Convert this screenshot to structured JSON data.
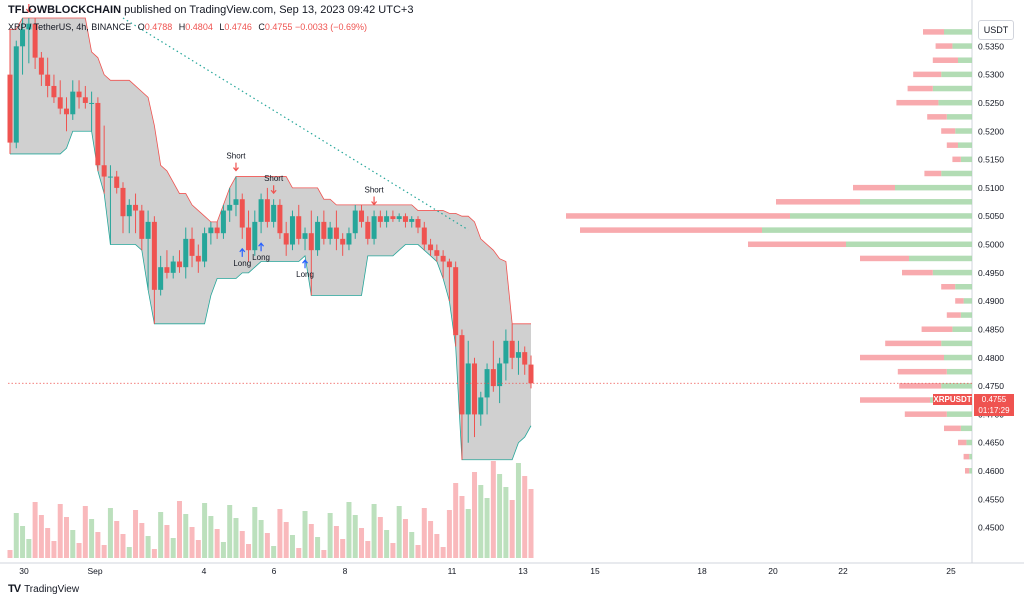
{
  "header": {
    "publisher_name": "TFLOWBLOCKCHAIN",
    "publisher_rest": " published on TradingView.com, Sep 13, 2023 09:42 UTC+3"
  },
  "legend": {
    "symbol": "XRP / TetherUS, 4h, BINANCE",
    "open_label": "O",
    "open": "0.4788",
    "high_label": "H",
    "high": "0.4804",
    "low_label": "L",
    "low": "0.4746",
    "close_label": "C",
    "close": "0.4755",
    "change": "−0.0033 (−0.69%)"
  },
  "currency_button": "USDT",
  "last_price": {
    "symbol_tag": "XRPUSDT",
    "price": "0.4755",
    "countdown": "01:17:29"
  },
  "footer": {
    "logo": "TV",
    "brand": "TradingView"
  },
  "colors": {
    "up": "#26a69a",
    "down": "#ef5350",
    "band_fill": "#c8c8c8",
    "vp_up": "#a5d6a7",
    "vp_down": "#f7a1a5",
    "ma_dotted": "#26a69a"
  },
  "chart_data": {
    "type": "candlestick",
    "timeframe": "4h",
    "y_range": [
      0.445,
      0.54
    ],
    "y_ticks": [
      "0.5350",
      "0.5300",
      "0.5250",
      "0.5200",
      "0.5150",
      "0.5100",
      "0.5050",
      "0.5000",
      "0.4950",
      "0.4900",
      "0.4850",
      "0.4800",
      "0.4750",
      "0.4700",
      "0.4650",
      "0.4600",
      "0.4550",
      "0.4500"
    ],
    "x_ticks": [
      "30",
      "Sep",
      "4",
      "6",
      "8",
      "11",
      "13",
      "15",
      "18",
      "20",
      "22",
      "25"
    ],
    "candles": [
      [
        0.53,
        0.538,
        0.516,
        0.518
      ],
      [
        0.518,
        0.536,
        0.517,
        0.535
      ],
      [
        0.535,
        0.54,
        0.53,
        0.538
      ],
      [
        0.538,
        0.54,
        0.532,
        0.539
      ],
      [
        0.539,
        0.54,
        0.531,
        0.533
      ],
      [
        0.533,
        0.534,
        0.528,
        0.53
      ],
      [
        0.53,
        0.533,
        0.526,
        0.528
      ],
      [
        0.528,
        0.53,
        0.525,
        0.526
      ],
      [
        0.526,
        0.529,
        0.523,
        0.524
      ],
      [
        0.524,
        0.526,
        0.52,
        0.523
      ],
      [
        0.523,
        0.529,
        0.522,
        0.527
      ],
      [
        0.527,
        0.529,
        0.524,
        0.526
      ],
      [
        0.526,
        0.528,
        0.524,
        0.525
      ],
      [
        0.525,
        0.527,
        0.52,
        0.525
      ],
      [
        0.525,
        0.526,
        0.513,
        0.514
      ],
      [
        0.514,
        0.521,
        0.509,
        0.512
      ],
      [
        0.512,
        0.514,
        0.5,
        0.512
      ],
      [
        0.512,
        0.513,
        0.509,
        0.51
      ],
      [
        0.51,
        0.511,
        0.502,
        0.505
      ],
      [
        0.505,
        0.508,
        0.502,
        0.507
      ],
      [
        0.507,
        0.509,
        0.502,
        0.506
      ],
      [
        0.506,
        0.507,
        0.499,
        0.501
      ],
      [
        0.501,
        0.506,
        0.492,
        0.504
      ],
      [
        0.504,
        0.505,
        0.486,
        0.492
      ],
      [
        0.492,
        0.498,
        0.491,
        0.496
      ],
      [
        0.496,
        0.499,
        0.494,
        0.495
      ],
      [
        0.495,
        0.498,
        0.494,
        0.497
      ],
      [
        0.497,
        0.499,
        0.495,
        0.496
      ],
      [
        0.496,
        0.503,
        0.494,
        0.501
      ],
      [
        0.501,
        0.503,
        0.496,
        0.498
      ],
      [
        0.498,
        0.5,
        0.495,
        0.497
      ],
      [
        0.497,
        0.503,
        0.496,
        0.502
      ],
      [
        0.502,
        0.504,
        0.5,
        0.503
      ],
      [
        0.503,
        0.504,
        0.501,
        0.502
      ],
      [
        0.502,
        0.507,
        0.501,
        0.506
      ],
      [
        0.506,
        0.51,
        0.504,
        0.507
      ],
      [
        0.507,
        0.512,
        0.505,
        0.508
      ],
      [
        0.508,
        0.509,
        0.501,
        0.503
      ],
      [
        0.503,
        0.506,
        0.497,
        0.499
      ],
      [
        0.499,
        0.506,
        0.498,
        0.504
      ],
      [
        0.504,
        0.509,
        0.502,
        0.508
      ],
      [
        0.508,
        0.51,
        0.503,
        0.504
      ],
      [
        0.504,
        0.508,
        0.503,
        0.507
      ],
      [
        0.507,
        0.508,
        0.501,
        0.502
      ],
      [
        0.502,
        0.504,
        0.498,
        0.5
      ],
      [
        0.5,
        0.506,
        0.499,
        0.505
      ],
      [
        0.505,
        0.507,
        0.5,
        0.501
      ],
      [
        0.501,
        0.503,
        0.499,
        0.502
      ],
      [
        0.502,
        0.506,
        0.491,
        0.499
      ],
      [
        0.499,
        0.505,
        0.498,
        0.504
      ],
      [
        0.504,
        0.506,
        0.5,
        0.501
      ],
      [
        0.501,
        0.504,
        0.5,
        0.503
      ],
      [
        0.503,
        0.506,
        0.499,
        0.501
      ],
      [
        0.501,
        0.502,
        0.498,
        0.5
      ],
      [
        0.5,
        0.503,
        0.499,
        0.502
      ],
      [
        0.502,
        0.507,
        0.501,
        0.506
      ],
      [
        0.506,
        0.507,
        0.503,
        0.504
      ],
      [
        0.504,
        0.505,
        0.5,
        0.501
      ],
      [
        0.501,
        0.506,
        0.5,
        0.505
      ],
      [
        0.505,
        0.506,
        0.503,
        0.504
      ],
      [
        0.504,
        0.506,
        0.503,
        0.505
      ],
      [
        0.505,
        0.506,
        0.504,
        0.5045
      ],
      [
        0.5045,
        0.5055,
        0.504,
        0.505
      ],
      [
        0.505,
        0.5055,
        0.503,
        0.504
      ],
      [
        0.504,
        0.505,
        0.503,
        0.5045
      ],
      [
        0.5045,
        0.505,
        0.502,
        0.503
      ],
      [
        0.503,
        0.504,
        0.499,
        0.5
      ],
      [
        0.5,
        0.501,
        0.498,
        0.499
      ],
      [
        0.499,
        0.5,
        0.497,
        0.498
      ],
      [
        0.498,
        0.499,
        0.494,
        0.497
      ],
      [
        0.497,
        0.4975,
        0.49,
        0.496
      ],
      [
        0.496,
        0.497,
        0.482,
        0.484
      ],
      [
        0.484,
        0.485,
        0.462,
        0.47
      ],
      [
        0.47,
        0.483,
        0.465,
        0.479
      ],
      [
        0.479,
        0.48,
        0.466,
        0.47
      ],
      [
        0.47,
        0.474,
        0.468,
        0.473
      ],
      [
        0.473,
        0.479,
        0.47,
        0.478
      ],
      [
        0.478,
        0.483,
        0.474,
        0.475
      ],
      [
        0.475,
        0.48,
        0.472,
        0.479
      ],
      [
        0.479,
        0.485,
        0.476,
        0.483
      ],
      [
        0.483,
        0.486,
        0.478,
        0.48
      ],
      [
        0.48,
        0.483,
        0.477,
        0.481
      ],
      [
        0.481,
        0.482,
        0.477,
        0.4788
      ],
      [
        0.4788,
        0.4804,
        0.4746,
        0.4755
      ]
    ],
    "volume_profile_prices": [
      0.5375,
      0.535,
      0.5325,
      0.53,
      0.5275,
      0.525,
      0.5225,
      0.52,
      0.5175,
      0.515,
      0.5125,
      0.51,
      0.5075,
      0.505,
      0.5025,
      0.5,
      0.4975,
      0.495,
      0.4925,
      0.49,
      0.4875,
      0.485,
      0.4825,
      0.48,
      0.4775,
      0.475,
      0.4725,
      0.47,
      0.4675,
      0.465,
      0.4625,
      0.46
    ],
    "volume_profile_up": [
      20,
      14,
      10,
      22,
      28,
      24,
      18,
      12,
      10,
      8,
      22,
      55,
      80,
      130,
      150,
      90,
      45,
      28,
      12,
      6,
      8,
      14,
      22,
      20,
      18,
      22,
      30,
      18,
      8,
      4,
      2,
      2
    ],
    "volume_profile_down": [
      15,
      12,
      18,
      20,
      18,
      30,
      14,
      10,
      8,
      6,
      12,
      30,
      60,
      160,
      130,
      70,
      35,
      22,
      10,
      6,
      10,
      22,
      40,
      60,
      35,
      30,
      50,
      30,
      12,
      6,
      4,
      3
    ],
    "markers": [
      {
        "type": "short",
        "label": "Short",
        "candle": 3
      },
      {
        "type": "short",
        "label": "Short",
        "candle": 36
      },
      {
        "type": "short",
        "label": "Short",
        "candle": 42
      },
      {
        "type": "short",
        "label": "Short",
        "candle": 58
      },
      {
        "type": "long",
        "label": "Long",
        "candle": 37
      },
      {
        "type": "long",
        "label": "Long",
        "candle": 40
      },
      {
        "type": "long",
        "label": "Long",
        "candle": 47
      }
    ]
  }
}
